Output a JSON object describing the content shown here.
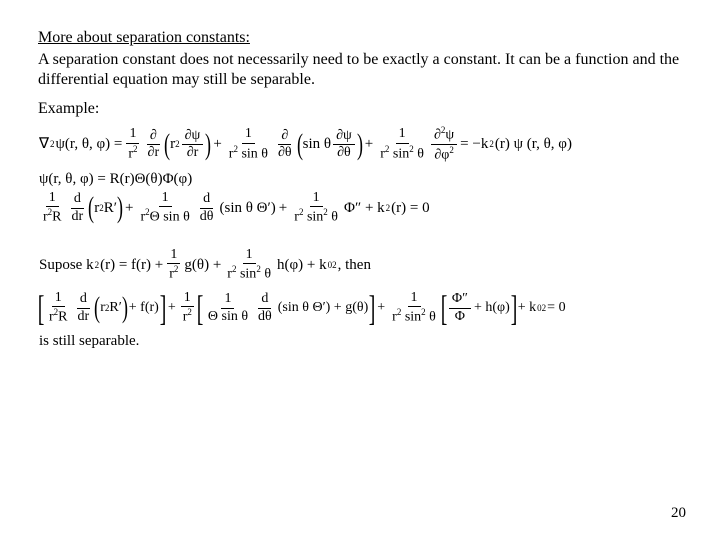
{
  "heading": "More about separation constants:",
  "paragraph": "A separation constant does not necessarily need to be exactly a constant. It can be a function and the differential equation may still be separable.",
  "example_label": "Example:",
  "page_number": "20",
  "colors": {
    "text": "#000000",
    "background": "#ffffff"
  },
  "typography": {
    "family": "Times New Roman",
    "body_size_pt": 12,
    "eq_size_pt": 11
  },
  "eq1": {
    "lhs_lead": "∇",
    "lhs_sup": "2",
    "lhs_psi": "ψ(r, θ, φ) =",
    "t1_num": "1",
    "t1_den_a": "r",
    "t1_den_sup": "2",
    "t1_dnum": "∂",
    "t1_dden": "∂r",
    "t1_inside_a": "r",
    "t1_inside_sup": "2",
    "t1_inside_frac_num": "∂ψ",
    "t1_inside_frac_den": "∂r",
    "plus1": "+",
    "t2_num": "1",
    "t2_den_a": "r",
    "t2_den_sup": "2",
    "t2_den_b": " sin θ",
    "t2_dnum": "∂",
    "t2_dden": "∂θ",
    "t2_inside_a": "sin θ",
    "t2_inside_frac_num": "∂ψ",
    "t2_inside_frac_den": "∂θ",
    "plus2": "+",
    "t3_num": "1",
    "t3_den_a": "r",
    "t3_den_sup": "2",
    "t3_den_b": " sin",
    "t3_den_bs": "2",
    "t3_den_c": " θ",
    "t3_frac_num_a": "∂",
    "t3_frac_num_sup": "2",
    "t3_frac_num_b": "ψ",
    "t3_frac_den_a": "∂φ",
    "t3_frac_den_sup": "2",
    "eq": " = −k",
    "eq_sup": "2",
    "rhs": "(r) ψ (r, θ, φ)"
  },
  "eq2": {
    "text": "ψ(r, θ, φ) = R(r)Θ(θ)Φ(φ)"
  },
  "eq3": {
    "t1_num": "1",
    "t1_den_a": "r",
    "t1_den_sup": "2",
    "t1_den_b": "R",
    "t1_dnum": "d",
    "t1_dden": "dr",
    "t1_inside_a": "r",
    "t1_inside_sup": "2",
    "t1_inside_b": "R′",
    "plus1": "+",
    "t2_num": "1",
    "t2_den_a": "r",
    "t2_den_sup": "2",
    "t2_den_b": "Θ sin θ",
    "t2_dnum": "d",
    "t2_dden": "dθ",
    "t2_inside": "(sin θ Θ′)",
    "plus2": "+",
    "t3_num": "1",
    "t3_den_a": "r",
    "t3_den_sup": "2",
    "t3_den_b": " sin",
    "t3_den_bs": "2",
    "t3_den_c": " θ",
    "t3_tail": " Φ″ + k",
    "t3_tail_sup": "2",
    "t3_tail_b": "(r) = 0"
  },
  "eq4": {
    "lead": "Supose  k",
    "lead_sup": "2",
    "lead_b": "(r) = f(r) +",
    "t1_num": "1",
    "t1_den_a": "r",
    "t1_den_sup": "2",
    "mid1": " g(θ) +",
    "t2_num": "1",
    "t2_den_a": "r",
    "t2_den_sup": "2",
    "t2_den_b": " sin",
    "t2_den_bs": "2",
    "t2_den_c": " θ",
    "mid2": " h(φ) + k",
    "mid2_sub": "0",
    "mid2_sup": "2",
    "tail": ", then"
  },
  "eq5": {
    "b1_t1_num": "1",
    "b1_t1_den_a": "r",
    "b1_t1_den_sup": "2",
    "b1_t1_den_b": "R",
    "b1_dnum": "d",
    "b1_dden": "dr",
    "b1_inside_a": "r",
    "b1_inside_sup": "2",
    "b1_inside_b": "R′",
    "b1_plus": "+ f(r)",
    "plus1": "+",
    "coef1_num": "1",
    "coef1_den_a": "r",
    "coef1_den_sup": "2",
    "b2_t1_num": "1",
    "b2_t1_den": "Θ sin θ",
    "b2_dnum": "d",
    "b2_dden": "dθ",
    "b2_inside": "(sin θ Θ′) + g(θ)",
    "plus2": "+",
    "coef2_num": "1",
    "coef2_den_a": "r",
    "coef2_den_sup": "2",
    "coef2_den_b": " sin",
    "coef2_den_bs": "2",
    "coef2_den_c": " θ",
    "b3_t1_num": "Φ″",
    "b3_t1_den": "Φ",
    "b3_plus": "+ h(φ)",
    "tail_a": "+ k",
    "tail_sub": "0",
    "tail_sup": "2",
    "tail_b": " = 0"
  },
  "eq6": {
    "text": "is still separable."
  }
}
